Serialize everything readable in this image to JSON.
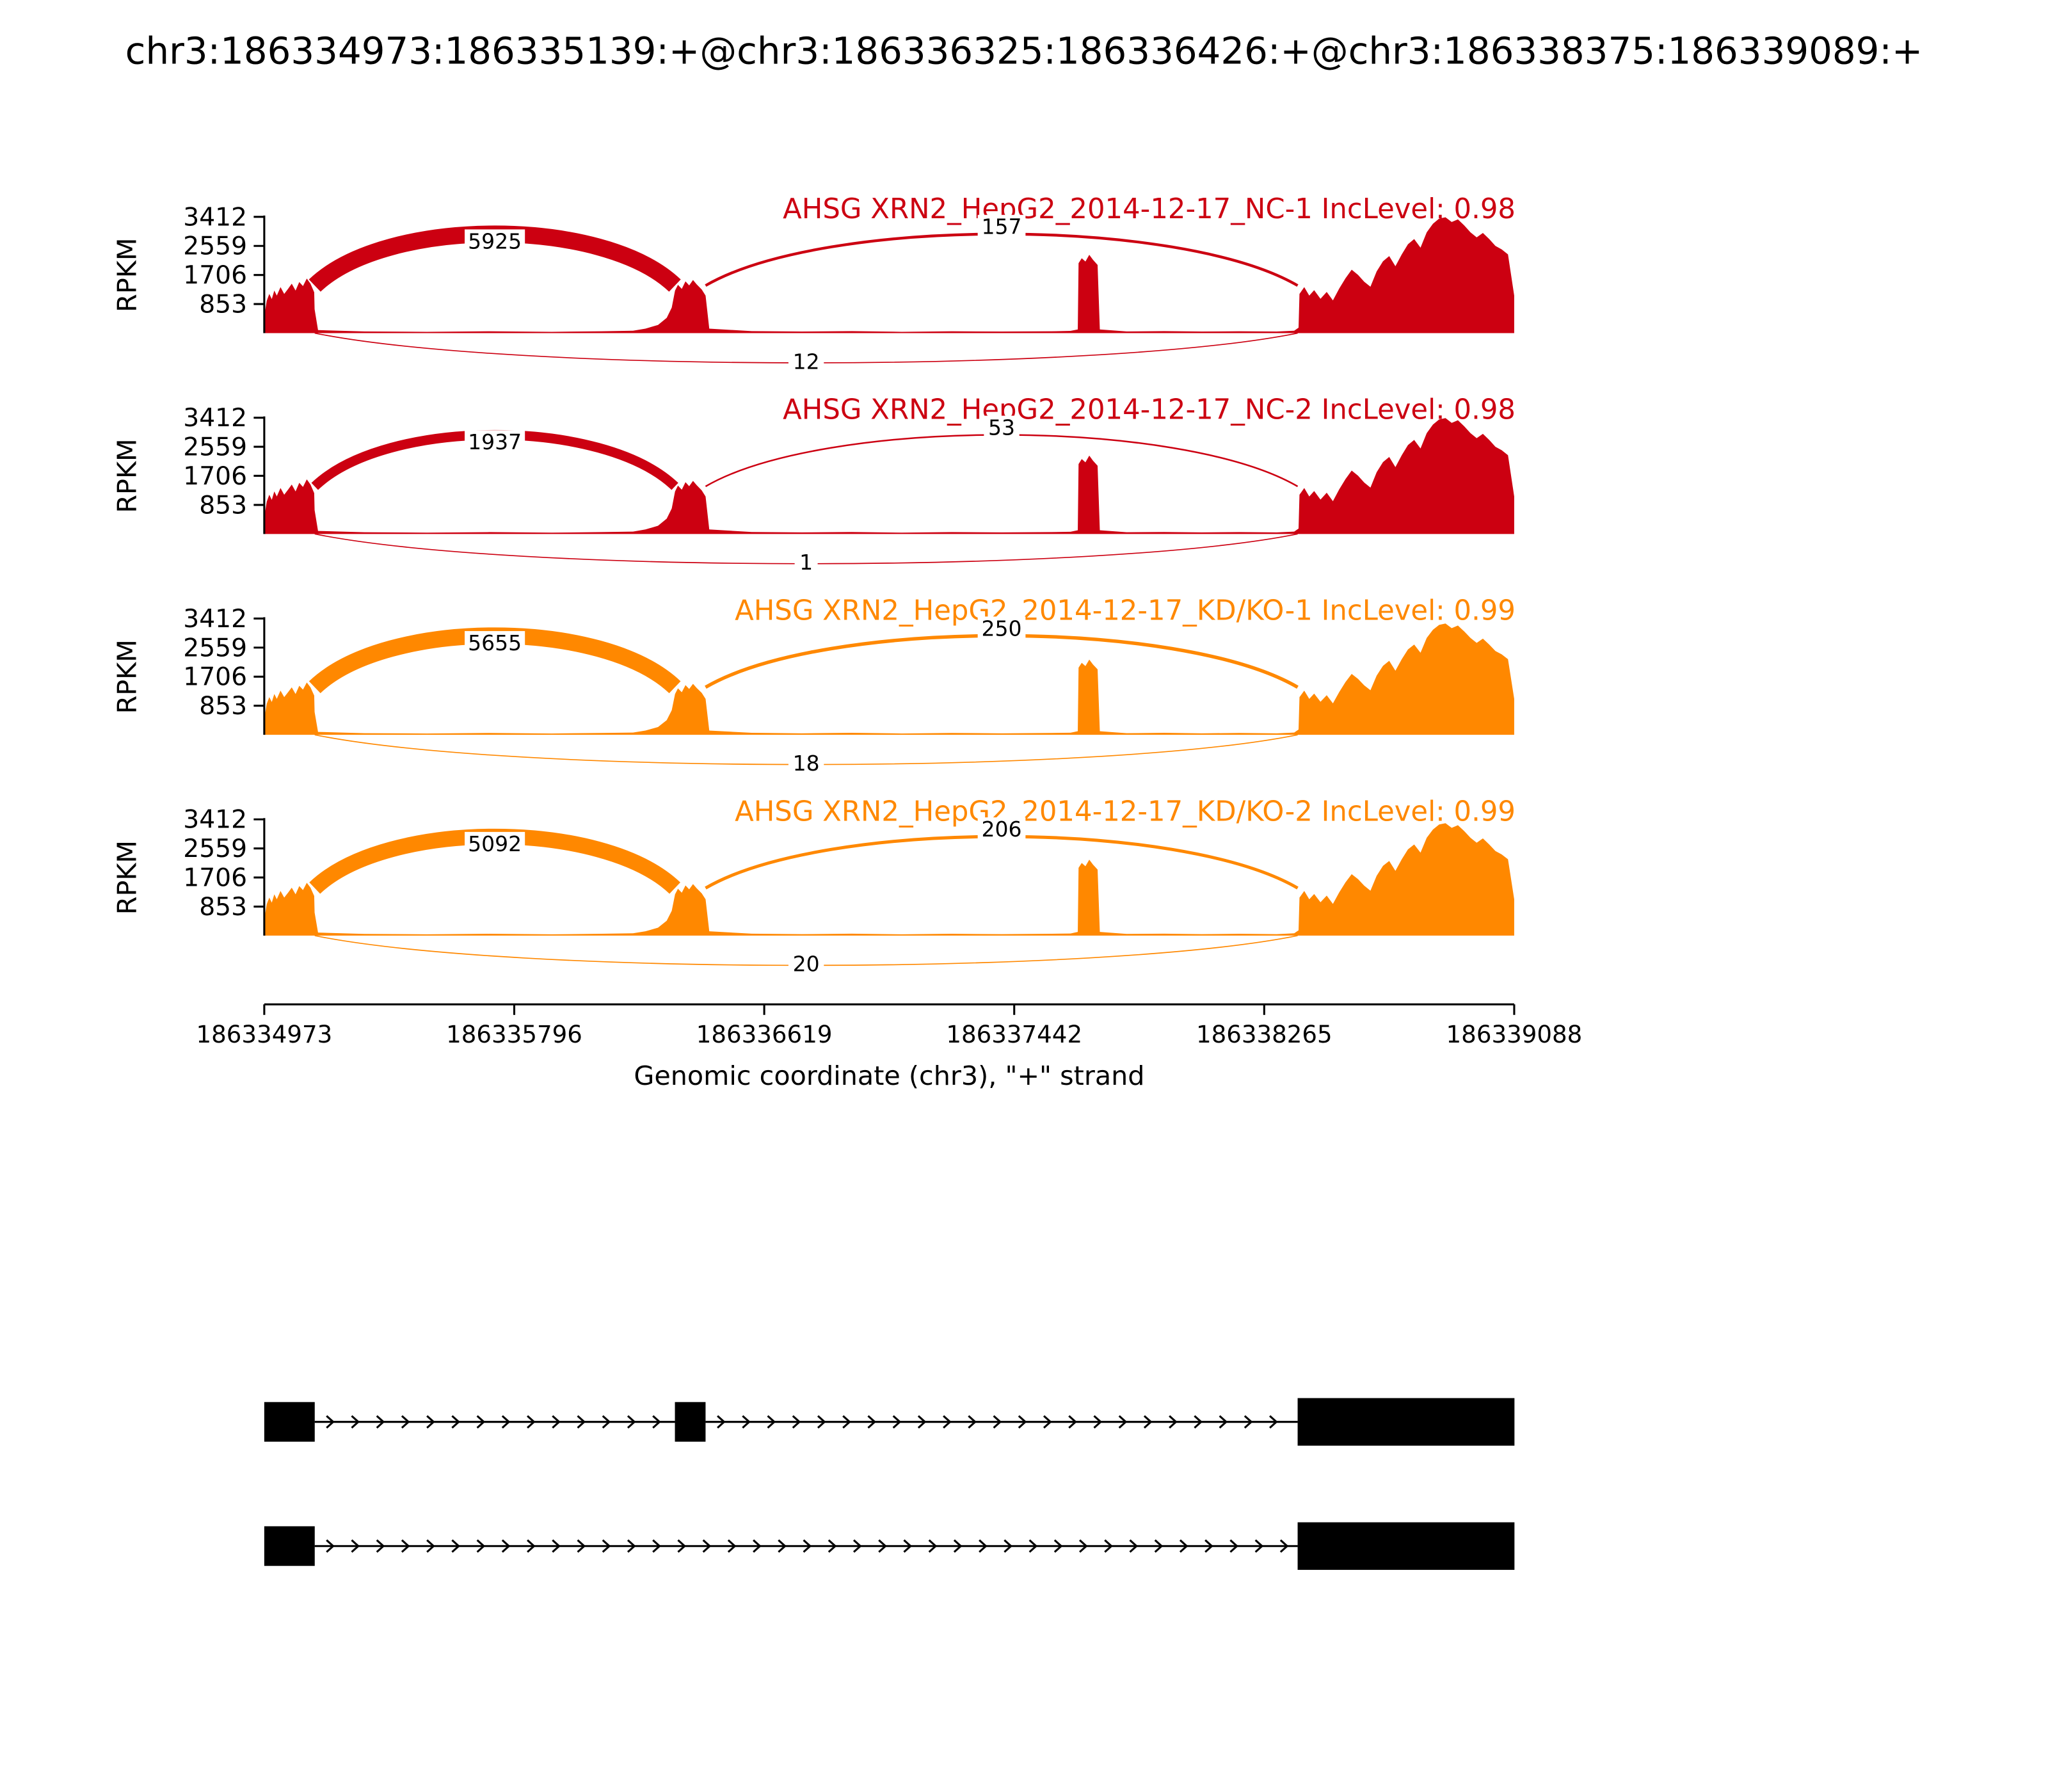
{
  "header": {
    "title": "chr3:186334973:186335139:+@chr3:186336325:186336426:+@chr3:186338375:186339089:+"
  },
  "chart_data": {
    "type": "area",
    "variant": "sashimi-plot",
    "title": "chr3:186334973:186335139:+@chr3:186336325:186336426:+@chr3:186338375:186339089:+",
    "xlabel": "Genomic coordinate (chr3), \"+\" strand",
    "ylabel": "RPKM",
    "x_range": [
      186334973,
      186339088
    ],
    "xticks": [
      186334973,
      186335796,
      186336619,
      186337442,
      186338265,
      186339088
    ],
    "yticks": [
      3412,
      2559,
      1706,
      853
    ],
    "y_max": 3412,
    "colors": {
      "nc_red": "#CC0011",
      "kd_orange": "#FF8800"
    },
    "exon_regions": [
      [
        186334973,
        186335139
      ],
      [
        186336325,
        186336426
      ],
      [
        186338375,
        186339089
      ]
    ],
    "junction_arcs": [
      {
        "from": 186335139,
        "to": 186336325,
        "side": "top"
      },
      {
        "from": 186336426,
        "to": 186338375,
        "side": "top"
      },
      {
        "from": 186335139,
        "to": 186338375,
        "side": "bottom"
      }
    ],
    "tracks": [
      {
        "label": "AHSG XRN2_HepG2_2014-12-17_NC-1 IncLevel: 0.98",
        "color": "#CC0011",
        "inc_level": "0.98",
        "junction_counts": [
          5925,
          157,
          12
        ],
        "amplitude": 1.0
      },
      {
        "label": "AHSG XRN2_HepG2_2014-12-17_NC-2 IncLevel: 0.98",
        "color": "#CC0011",
        "inc_level": "0.98",
        "junction_counts": [
          1937,
          53,
          1
        ],
        "amplitude": 1.0
      },
      {
        "label": "AHSG XRN2_HepG2_2014-12-17_KD/KO-1 IncLevel: 0.99",
        "color": "#FF8800",
        "inc_level": "0.99",
        "junction_counts": [
          5655,
          250,
          18
        ],
        "amplitude": 0.96
      },
      {
        "label": "AHSG XRN2_HepG2_2014-12-17_KD/KO-2 IncLevel: 0.99",
        "color": "#FF8800",
        "inc_level": "0.99",
        "junction_counts": [
          5092,
          206,
          20
        ],
        "amplitude": 0.97
      }
    ],
    "coverage_profile": [
      [
        0.0,
        500
      ],
      [
        0.002,
        950
      ],
      [
        0.004,
        1150
      ],
      [
        0.006,
        1000
      ],
      [
        0.008,
        1250
      ],
      [
        0.01,
        1100
      ],
      [
        0.013,
        1350
      ],
      [
        0.016,
        1150
      ],
      [
        0.019,
        1300
      ],
      [
        0.022,
        1450
      ],
      [
        0.025,
        1250
      ],
      [
        0.028,
        1500
      ],
      [
        0.031,
        1380
      ],
      [
        0.034,
        1600
      ],
      [
        0.037,
        1450
      ],
      [
        0.04,
        1200
      ],
      [
        0.0403,
        700
      ],
      [
        0.043,
        90
      ],
      [
        0.08,
        50
      ],
      [
        0.13,
        40
      ],
      [
        0.18,
        55
      ],
      [
        0.23,
        40
      ],
      [
        0.27,
        55
      ],
      [
        0.295,
        70
      ],
      [
        0.305,
        130
      ],
      [
        0.315,
        240
      ],
      [
        0.322,
        450
      ],
      [
        0.326,
        750
      ],
      [
        0.3286,
        1250
      ],
      [
        0.331,
        1420
      ],
      [
        0.334,
        1300
      ],
      [
        0.337,
        1520
      ],
      [
        0.34,
        1400
      ],
      [
        0.343,
        1560
      ],
      [
        0.346,
        1430
      ],
      [
        0.35,
        1280
      ],
      [
        0.3531,
        1100
      ],
      [
        0.356,
        130
      ],
      [
        0.39,
        60
      ],
      [
        0.43,
        45
      ],
      [
        0.47,
        60
      ],
      [
        0.51,
        40
      ],
      [
        0.55,
        55
      ],
      [
        0.59,
        45
      ],
      [
        0.63,
        55
      ],
      [
        0.645,
        65
      ],
      [
        0.6508,
        110
      ],
      [
        0.6515,
        2050
      ],
      [
        0.654,
        2200
      ],
      [
        0.657,
        2100
      ],
      [
        0.66,
        2300
      ],
      [
        0.663,
        2150
      ],
      [
        0.6667,
        2000
      ],
      [
        0.6685,
        110
      ],
      [
        0.69,
        50
      ],
      [
        0.72,
        60
      ],
      [
        0.75,
        45
      ],
      [
        0.78,
        55
      ],
      [
        0.81,
        45
      ],
      [
        0.824,
        70
      ],
      [
        0.8275,
        160
      ],
      [
        0.8282,
        1150
      ],
      [
        0.832,
        1350
      ],
      [
        0.836,
        1100
      ],
      [
        0.84,
        1260
      ],
      [
        0.845,
        1010
      ],
      [
        0.85,
        1210
      ],
      [
        0.855,
        960
      ],
      [
        0.86,
        1310
      ],
      [
        0.865,
        1610
      ],
      [
        0.87,
        1860
      ],
      [
        0.875,
        1710
      ],
      [
        0.88,
        1510
      ],
      [
        0.885,
        1360
      ],
      [
        0.89,
        1810
      ],
      [
        0.895,
        2110
      ],
      [
        0.9,
        2260
      ],
      [
        0.905,
        1960
      ],
      [
        0.91,
        2310
      ],
      [
        0.915,
        2610
      ],
      [
        0.92,
        2760
      ],
      [
        0.925,
        2510
      ],
      [
        0.93,
        2960
      ],
      [
        0.935,
        3210
      ],
      [
        0.94,
        3360
      ],
      [
        0.945,
        3400
      ],
      [
        0.95,
        3260
      ],
      [
        0.955,
        3340
      ],
      [
        0.96,
        3160
      ],
      [
        0.965,
        2960
      ],
      [
        0.97,
        2810
      ],
      [
        0.975,
        2940
      ],
      [
        0.98,
        2760
      ],
      [
        0.985,
        2560
      ],
      [
        0.99,
        2460
      ],
      [
        0.995,
        2310
      ],
      [
        1.0,
        1100
      ]
    ],
    "isoforms": [
      {
        "exons": [
          [
            186334973,
            186335139
          ],
          [
            186336325,
            186336426
          ],
          [
            186338375,
            186339089
          ]
        ]
      },
      {
        "exons": [
          [
            186334973,
            186335139
          ],
          [
            186338375,
            186339089
          ]
        ]
      }
    ]
  }
}
